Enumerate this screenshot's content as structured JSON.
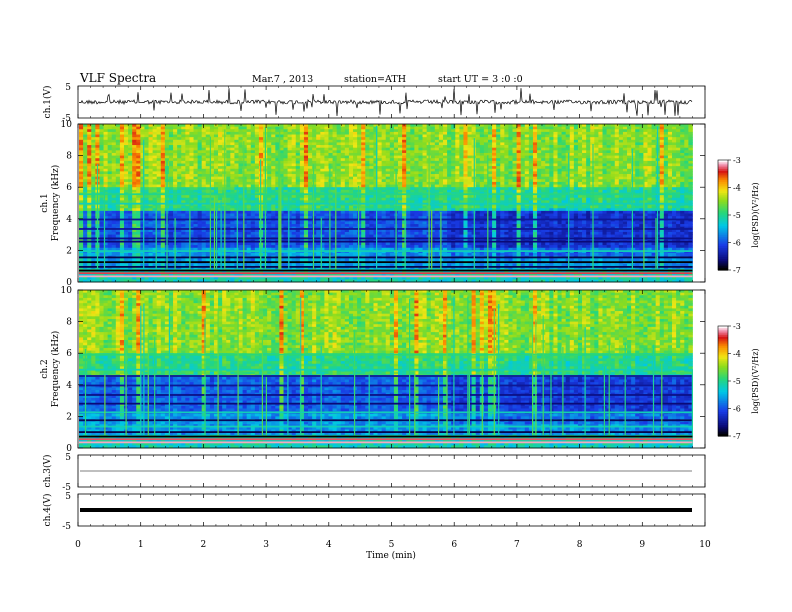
{
  "header": {
    "title": "VLF  Spectra",
    "date": "Mar.7  , 2013",
    "station": "station=ATH",
    "start": "start  UT  =  3 :0 :0"
  },
  "chart_data": [
    {
      "type": "line",
      "panel": "ch1-waveform",
      "ylabel": "ch.1(V)",
      "ylim": [
        -5,
        5
      ],
      "yticks": [
        "5",
        "-5"
      ]
    },
    {
      "type": "heatmap",
      "panel": "ch1-spectrogram",
      "ylabel_lines": [
        "ch.1",
        "Frequency  (kHz)"
      ],
      "ylim": [
        0,
        10
      ],
      "yticks": [
        "10",
        "8",
        "6",
        "4",
        "2",
        "0"
      ],
      "colorbar": {
        "label": "log(PSD)(V²/Hz)",
        "range": [
          -7,
          -3
        ],
        "ticks": [
          "-3",
          "-4",
          "-5",
          "-6",
          "-7"
        ]
      }
    },
    {
      "type": "heatmap",
      "panel": "ch2-spectrogram",
      "ylabel_lines": [
        "ch.2",
        "Frequency  (kHz)"
      ],
      "ylim": [
        0,
        10
      ],
      "yticks": [
        "10",
        "8",
        "6",
        "4",
        "2",
        "0"
      ],
      "colorbar": {
        "label": "log(PSD)(V²/Hz)",
        "range": [
          -7,
          -3
        ],
        "ticks": [
          "-3",
          "-4",
          "-5",
          "-6",
          "-7"
        ]
      }
    },
    {
      "type": "line",
      "panel": "ch3-waveform",
      "ylabel": "ch.3(V)",
      "ylim": [
        -5,
        5
      ],
      "yticks": [
        "5",
        "-5"
      ]
    },
    {
      "type": "line",
      "panel": "ch4-waveform",
      "ylabel": "ch.4(V)",
      "ylim": [
        -5,
        5
      ],
      "yticks": [
        "5",
        "-5"
      ]
    }
  ],
  "xaxis": {
    "label": "Time  (min)",
    "xlim": [
      0,
      10
    ],
    "ticks": [
      "0",
      "1",
      "2",
      "3",
      "4",
      "5",
      "6",
      "7",
      "8",
      "9",
      "10"
    ]
  },
  "colors": {
    "axis": "#000000",
    "background": "#ffffff",
    "spectrum_base": "#1c3ad8",
    "spectrum_noise": "#33d27a"
  }
}
